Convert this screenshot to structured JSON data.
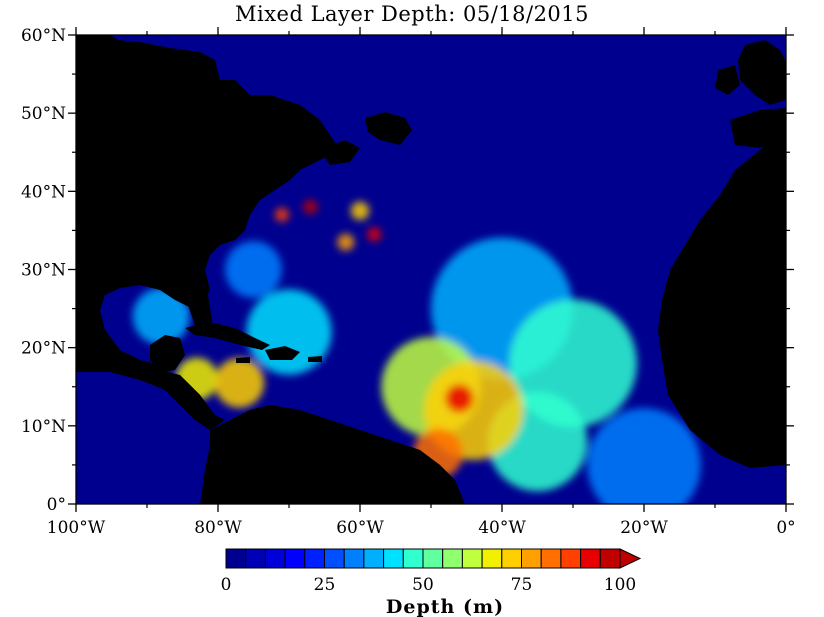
{
  "title": "Mixed Layer Depth: 05/18/2015",
  "map": {
    "lon_range": [
      -100,
      0
    ],
    "lat_range": [
      0,
      60
    ],
    "land_color": "#000000",
    "ocean_base_color": "#00008f",
    "ice_color": "#ffffff",
    "lat_ticks": [
      {
        "value": 60,
        "label": "60°N"
      },
      {
        "value": 50,
        "label": "50°N"
      },
      {
        "value": 40,
        "label": "40°N"
      },
      {
        "value": 30,
        "label": "30°N"
      },
      {
        "value": 20,
        "label": "20°N"
      },
      {
        "value": 10,
        "label": "10°N"
      },
      {
        "value": 0,
        "label": "0°"
      }
    ],
    "lon_ticks": [
      {
        "value": -100,
        "label": "100°W"
      },
      {
        "value": -80,
        "label": "80°W"
      },
      {
        "value": -60,
        "label": "60°W"
      },
      {
        "value": -40,
        "label": "40°W"
      },
      {
        "value": -20,
        "label": "20°W"
      },
      {
        "value": 0,
        "label": "0°"
      }
    ]
  },
  "colorbar": {
    "title": "Depth (m)",
    "min": 0,
    "max": 100,
    "step": 5,
    "labels": [
      {
        "value": 0,
        "label": "0"
      },
      {
        "value": 25,
        "label": "25"
      },
      {
        "value": 50,
        "label": "50"
      },
      {
        "value": 75,
        "label": "75"
      },
      {
        "value": 100,
        "label": "100"
      }
    ],
    "colors": [
      "#000090",
      "#0000b4",
      "#0000d8",
      "#0000fc",
      "#0020ff",
      "#0050ff",
      "#0080ff",
      "#00b0ff",
      "#00e0ff",
      "#30ffd0",
      "#60ffa0",
      "#90ff70",
      "#c0ff40",
      "#f0f000",
      "#ffd000",
      "#ffa000",
      "#ff7000",
      "#ff4000",
      "#e80000",
      "#c00000"
    ],
    "extend_color": "#c00000"
  },
  "chart_data": {
    "type": "heatmap",
    "title": "Mixed Layer Depth: 05/18/2015",
    "colorbar_label": "Depth (m)",
    "colorbar_range": [
      0,
      100
    ],
    "xlabel": "",
    "ylabel": "",
    "xlim": [
      -100,
      0
    ],
    "ylim": [
      0,
      60
    ],
    "hotspots": [
      {
        "lon": -46,
        "lat": 13.5,
        "depth": 90,
        "radius_deg": 2.0
      },
      {
        "lon": -49,
        "lat": 6.5,
        "depth": 80,
        "radius_deg": 3.5
      },
      {
        "lon": -44,
        "lat": 12,
        "depth": 70,
        "radius_deg": 7
      },
      {
        "lon": -77,
        "lat": 15.5,
        "depth": 72,
        "radius_deg": 3.5
      },
      {
        "lon": -83,
        "lat": 16,
        "depth": 65,
        "radius_deg": 3
      },
      {
        "lon": -67,
        "lat": 38,
        "depth": 95,
        "radius_deg": 1.0
      },
      {
        "lon": -71,
        "lat": 37,
        "depth": 85,
        "radius_deg": 1.0
      },
      {
        "lon": -58,
        "lat": 34.5,
        "depth": 90,
        "radius_deg": 1.0
      },
      {
        "lon": -62,
        "lat": 33.5,
        "depth": 75,
        "radius_deg": 1.2
      },
      {
        "lon": -60,
        "lat": 37.5,
        "depth": 70,
        "radius_deg": 1.3
      },
      {
        "lon": -50,
        "lat": 15,
        "depth": 60,
        "radius_deg": 7
      },
      {
        "lon": -30,
        "lat": 18,
        "depth": 45,
        "radius_deg": 9
      },
      {
        "lon": -40,
        "lat": 25,
        "depth": 35,
        "radius_deg": 10
      },
      {
        "lon": -70,
        "lat": 22,
        "depth": 40,
        "radius_deg": 6
      },
      {
        "lon": -88,
        "lat": 24,
        "depth": 35,
        "radius_deg": 4
      },
      {
        "lon": -75,
        "lat": 30,
        "depth": 30,
        "radius_deg": 4
      },
      {
        "lon": -20,
        "lat": 5,
        "depth": 30,
        "radius_deg": 8
      },
      {
        "lon": -35,
        "lat": 8,
        "depth": 45,
        "radius_deg": 7
      }
    ]
  }
}
